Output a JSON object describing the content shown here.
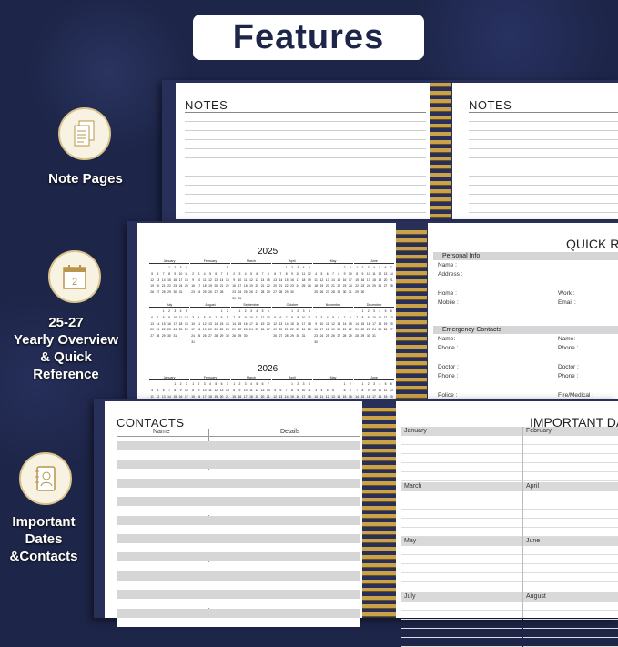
{
  "header": {
    "title": "Features"
  },
  "features": [
    {
      "label": "Note Pages",
      "icon": "note-pages-icon"
    },
    {
      "label": "25-27 Yearly Overview & Quick Reference",
      "lines": [
        "25-27",
        "Yearly Overview",
        "& Quick",
        "Reference"
      ],
      "icon": "calendar-icon"
    },
    {
      "label": "Important Dates & Contacts",
      "lines": [
        "Important",
        "Dates",
        "&Contacts"
      ],
      "icon": "address-book-icon"
    }
  ],
  "calendar_icon_number": "2",
  "notes": {
    "left_title": "NOTES",
    "right_title": "NOTES"
  },
  "yearly": {
    "years": [
      "2025",
      "2026"
    ],
    "months": [
      "January",
      "February",
      "March",
      "April",
      "May",
      "June",
      "July",
      "August",
      "September",
      "October",
      "November",
      "December"
    ],
    "weekdays": [
      "S",
      "M",
      "T",
      "W",
      "T",
      "F",
      "S"
    ]
  },
  "quick_ref": {
    "title": "QUICK RE",
    "personal_header": "Personal Info",
    "personal_fields": {
      "name": "Name :",
      "address": "Address :",
      "home": "Home :",
      "work": "Work :",
      "mobile": "Mobile :",
      "email": "Email :"
    },
    "emergency_header": "Emergency Contacts",
    "emergency_fields": {
      "name1": "Name:",
      "name2": "Name:",
      "phone1": "Phone :",
      "phone2": "Phone :",
      "doctor1": "Doctor :",
      "doctor2": "Doctor :",
      "phone3": "Phone :",
      "phone4": "Phone :",
      "police": "Police :",
      "fire": "Fire/Medical :"
    }
  },
  "contacts": {
    "title": "CONTACTS",
    "col_name": "Name",
    "col_details": "Details"
  },
  "important_dates": {
    "title": "IMPORTANT DATES",
    "months": [
      "January",
      "February",
      "March",
      "April",
      "May",
      "June",
      "July",
      "August"
    ]
  },
  "colors": {
    "navy": "#1d2548",
    "gold": "#c9a24a",
    "cream": "#f7f2e2"
  }
}
